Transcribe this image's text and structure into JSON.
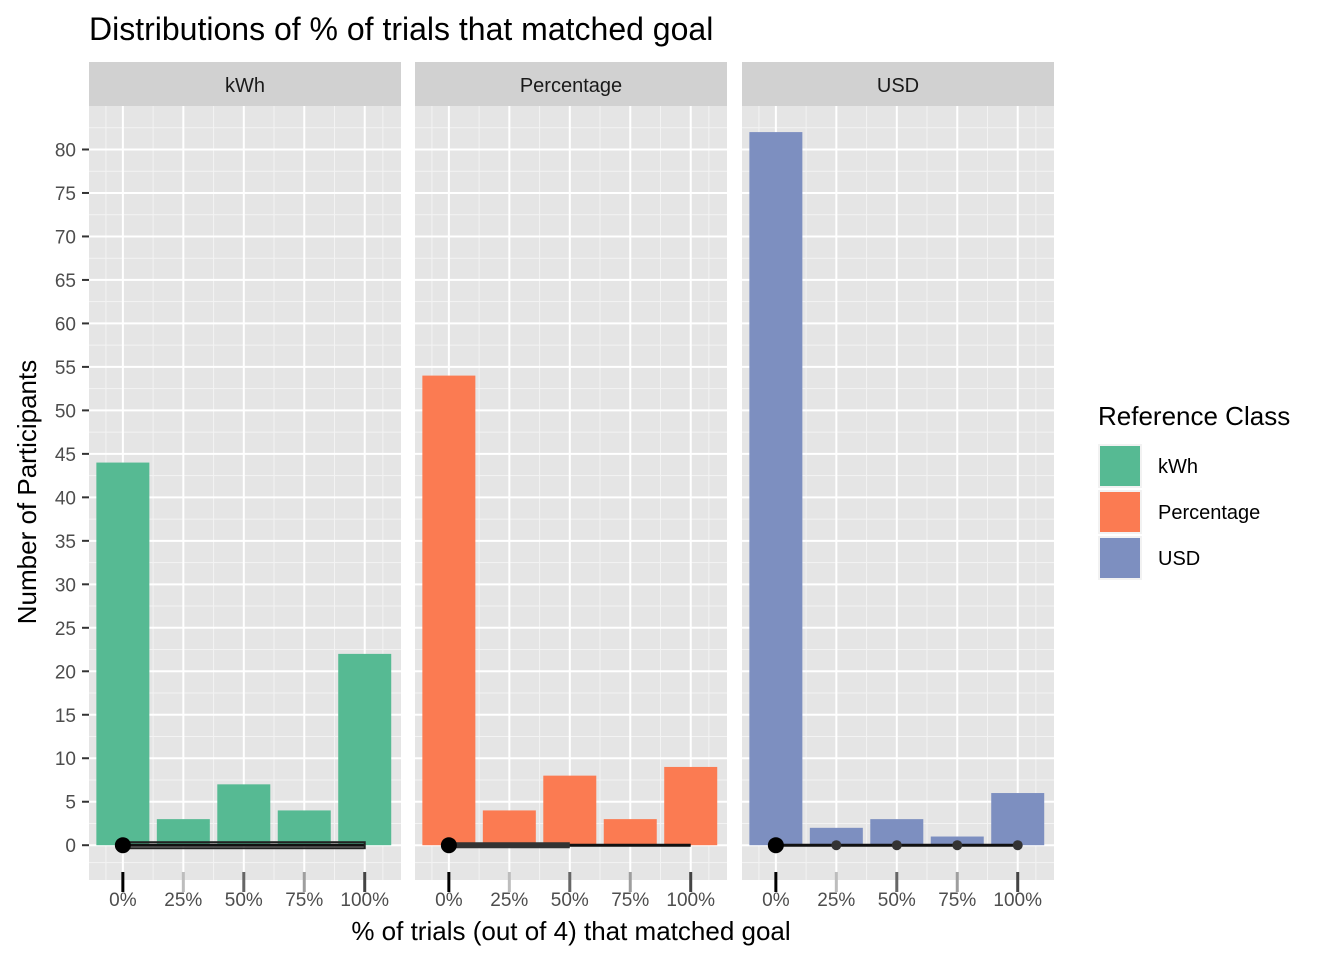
{
  "chart_data": {
    "type": "bar",
    "title": "Distributions of % of trials that matched goal",
    "xlabel": "% of trials (out of 4) that matched goal",
    "ylabel": "Number of Participants",
    "categories": [
      "0%",
      "25%",
      "50%",
      "75%",
      "100%"
    ],
    "x_values": [
      0,
      25,
      50,
      75,
      100
    ],
    "xlim": [
      -14,
      115
    ],
    "ylim": [
      -4,
      85
    ],
    "yticks": [
      0,
      5,
      10,
      15,
      20,
      25,
      30,
      35,
      40,
      45,
      50,
      55,
      60,
      65,
      70,
      75,
      80
    ],
    "grid": true,
    "facets": [
      {
        "label": "kWh",
        "color": "#56BA93",
        "values": [
          44,
          3,
          7,
          4,
          22
        ],
        "summary_range": [
          0,
          100
        ],
        "summary_point": 0
      },
      {
        "label": "Percentage",
        "color": "#FB7B52",
        "values": [
          54,
          4,
          8,
          3,
          9
        ],
        "summary_range": [
          0,
          100
        ],
        "summary_thick_range": [
          0,
          50
        ],
        "summary_point": 0
      },
      {
        "label": "USD",
        "color": "#7D8FC0",
        "values": [
          82,
          2,
          3,
          1,
          6
        ],
        "summary_range": [
          0,
          100
        ],
        "summary_point": 0
      }
    ],
    "legend": {
      "title": "Reference Class",
      "position": "right",
      "entries": [
        {
          "label": "kWh",
          "color": "#56BA93"
        },
        {
          "label": "Percentage",
          "color": "#FB7B52"
        },
        {
          "label": "USD",
          "color": "#7D8FC0"
        }
      ]
    }
  }
}
